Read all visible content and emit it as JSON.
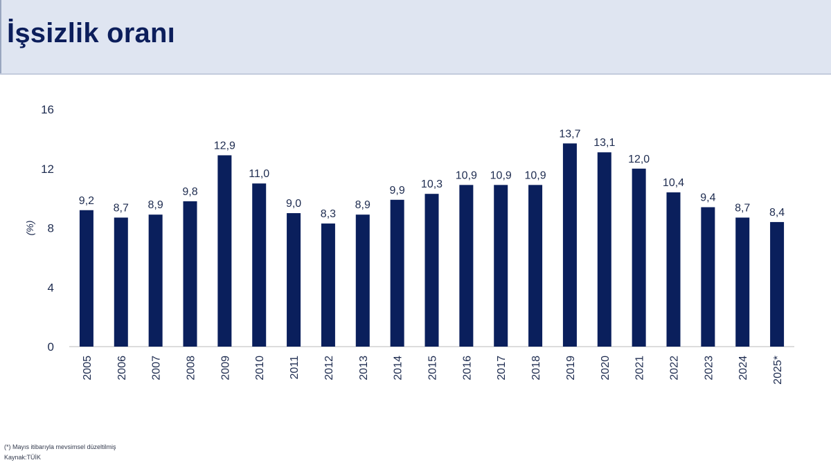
{
  "page": {
    "title": "İşsizlik oranı",
    "footnote": "(*) Mayıs itibarıyla mevsimsel düzeltilmiş",
    "source": "Kaynak:TÜİK"
  },
  "chart_data": {
    "type": "bar",
    "title": "",
    "xlabel": "",
    "ylabel": "(%)",
    "ylim": [
      0,
      16
    ],
    "yticks": [
      0,
      4,
      8,
      12,
      16
    ],
    "grid": false,
    "legend": "none",
    "categories": [
      "2005",
      "2006",
      "2007",
      "2008",
      "2009",
      "2010",
      "2011",
      "2012",
      "2013",
      "2014",
      "2015",
      "2016",
      "2017",
      "2018",
      "2019",
      "2020",
      "2021",
      "2022",
      "2023",
      "2024",
      "2025*"
    ],
    "values": [
      9.2,
      8.7,
      8.9,
      9.8,
      12.9,
      11.0,
      9.0,
      8.3,
      8.9,
      9.9,
      10.3,
      10.9,
      10.9,
      10.9,
      13.7,
      13.1,
      12.0,
      10.4,
      9.4,
      8.7,
      8.4
    ],
    "data_labels": [
      "9,2",
      "8,7",
      "8,9",
      "9,8",
      "12,9",
      "11,0",
      "9,0",
      "8,3",
      "8,9",
      "9,9",
      "10,3",
      "10,9",
      "10,9",
      "10,9",
      "13,7",
      "13,1",
      "12,0",
      "10,4",
      "9,4",
      "8,7",
      "8,4"
    ],
    "colors": {
      "bar": "#0a1f5c",
      "text": "#1d2b4f",
      "axis": "#d0d0d0"
    }
  }
}
